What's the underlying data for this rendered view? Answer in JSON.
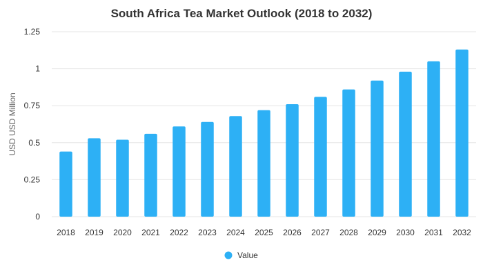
{
  "chart_data": {
    "type": "bar",
    "title": "South Africa Tea Market Outlook (2018 to 2032)",
    "xlabel": "",
    "ylabel": "USD USD Million",
    "categories": [
      "2018",
      "2019",
      "2020",
      "2021",
      "2022",
      "2023",
      "2024",
      "2025",
      "2026",
      "2027",
      "2028",
      "2029",
      "2030",
      "2031",
      "2032"
    ],
    "series": [
      {
        "name": "Value",
        "color": "#2db0f5",
        "values": [
          0.44,
          0.53,
          0.52,
          0.56,
          0.61,
          0.64,
          0.68,
          0.72,
          0.76,
          0.81,
          0.86,
          0.92,
          0.98,
          1.05,
          1.13
        ]
      }
    ],
    "ylim": [
      0,
      1.25
    ],
    "yticks": [
      "0",
      "0.25",
      "0.5",
      "0.75",
      "1",
      "1.25"
    ],
    "grid": true,
    "legend_position": "bottom-center"
  }
}
